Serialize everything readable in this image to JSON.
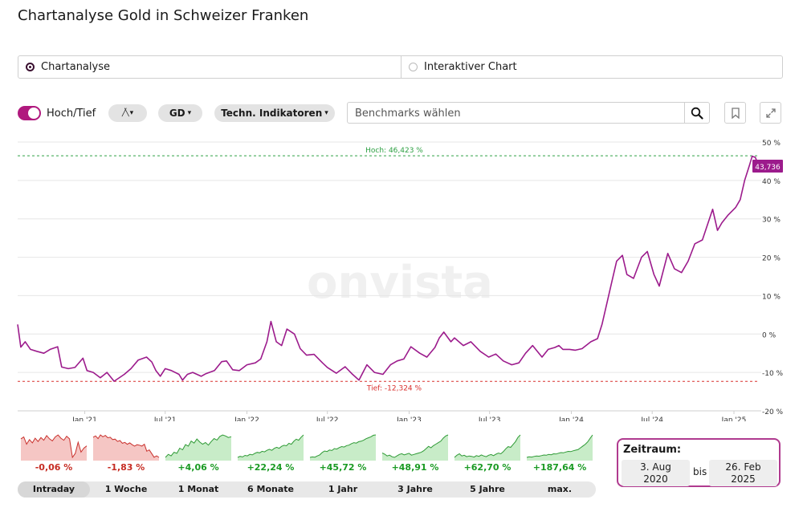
{
  "page": {
    "title": "Chartanalyse Gold in Schweizer Franken"
  },
  "modes": [
    {
      "label": "Chartanalyse",
      "selected": true
    },
    {
      "label": "Interaktiver Chart",
      "selected": false
    }
  ],
  "toolbar": {
    "toggle_label": "Hoch/Tief",
    "chart_type_label": "╱╲",
    "ma_label": "GD",
    "indicators_label": "Techn. Indikatoren",
    "search_placeholder": "Benchmarks wählen",
    "icons": [
      "chevron-down-icon",
      "search-icon",
      "bookmark-icon",
      "expand-icon"
    ]
  },
  "colors": {
    "line": "#9c1b8c",
    "high": "#2ea043",
    "low": "#d9302e",
    "accent": "#b0197e",
    "neg_bg": "#f5c6c4",
    "neg_line": "#c9302c",
    "pos_bg": "#c8ecc8",
    "pos_line": "#2e9a35"
  },
  "chart_data": {
    "type": "line",
    "title": "",
    "ylim": [
      -20,
      50
    ],
    "y_ticks": [
      50,
      40,
      30,
      20,
      10,
      0,
      -10,
      -20
    ],
    "y_tick_labels": [
      "50 %",
      "40 %",
      "30 %",
      "20 %",
      "10 %",
      "0 %",
      "-10 %",
      "-20 %"
    ],
    "x_ticks": [
      "Jan '21",
      "Jul '21",
      "Jan '22",
      "Jul '22",
      "Jan '23",
      "Jul '23",
      "Jan '24",
      "Jul '24",
      "Jan '25"
    ],
    "x_tick_dates": [
      "2021-01-01",
      "2021-07-01",
      "2022-01-01",
      "2022-07-01",
      "2023-01-01",
      "2023-07-01",
      "2024-01-01",
      "2024-07-01",
      "2025-01-01"
    ],
    "x_range": [
      "2020-08-03",
      "2025-02-26"
    ],
    "grid": true,
    "high_label": "Hoch: 46,423 %",
    "high_value": 46.423,
    "low_label": "Tief: -12,324 %",
    "low_value": -12.324,
    "last_label": "43,736",
    "last_value": 43.736,
    "watermark": "onvista",
    "series": [
      {
        "x": [
          "2020-08-03",
          "2020-08-10",
          "2020-08-20",
          "2020-09-01",
          "2020-09-15",
          "2020-10-01",
          "2020-10-15",
          "2020-11-01",
          "2020-11-10",
          "2020-11-25",
          "2020-12-10",
          "2020-12-28",
          "2021-01-06",
          "2021-01-20",
          "2021-02-05",
          "2021-02-20",
          "2021-03-08",
          "2021-03-31",
          "2021-04-15",
          "2021-05-01",
          "2021-05-20",
          "2021-06-01",
          "2021-06-10",
          "2021-06-20",
          "2021-07-01",
          "2021-07-15",
          "2021-08-01",
          "2021-08-09",
          "2021-08-20",
          "2021-09-01",
          "2021-09-20",
          "2021-10-01",
          "2021-10-20",
          "2021-11-05",
          "2021-11-16",
          "2021-11-30",
          "2021-12-15",
          "2022-01-01",
          "2022-01-20",
          "2022-02-01",
          "2022-02-15",
          "2022-02-24",
          "2022-03-08",
          "2022-03-20",
          "2022-04-01",
          "2022-04-18",
          "2022-05-01",
          "2022-05-15",
          "2022-06-01",
          "2022-06-20",
          "2022-07-01",
          "2022-07-21",
          "2022-08-10",
          "2022-08-25",
          "2022-09-10",
          "2022-09-28",
          "2022-10-15",
          "2022-11-03",
          "2022-11-20",
          "2022-12-05",
          "2022-12-20",
          "2023-01-05",
          "2023-01-25",
          "2023-02-10",
          "2023-02-28",
          "2023-03-10",
          "2023-03-20",
          "2023-04-05",
          "2023-04-13",
          "2023-05-03",
          "2023-05-20",
          "2023-06-10",
          "2023-06-29",
          "2023-07-15",
          "2023-08-01",
          "2023-08-20",
          "2023-09-05",
          "2023-09-20",
          "2023-10-06",
          "2023-10-20",
          "2023-10-27",
          "2023-11-10",
          "2023-11-25",
          "2023-12-04",
          "2023-12-13",
          "2023-12-28",
          "2024-01-10",
          "2024-01-25",
          "2024-02-14",
          "2024-02-29",
          "2024-03-10",
          "2024-03-20",
          "2024-04-01",
          "2024-04-12",
          "2024-04-25",
          "2024-05-05",
          "2024-05-20",
          "2024-06-07",
          "2024-06-20",
          "2024-07-05",
          "2024-07-17",
          "2024-08-05",
          "2024-08-20",
          "2024-09-05",
          "2024-09-20",
          "2024-10-05",
          "2024-10-22",
          "2024-11-01",
          "2024-11-14",
          "2024-11-25",
          "2024-12-05",
          "2024-12-19",
          "2025-01-05",
          "2025-01-15",
          "2025-01-25",
          "2025-02-05",
          "2025-02-11",
          "2025-02-18",
          "2025-02-26"
        ],
        "values": [
          2.5,
          -3.4,
          -2.0,
          -4.0,
          -4.5,
          -5.0,
          -4.0,
          -3.3,
          -8.6,
          -9.0,
          -8.7,
          -6.3,
          -9.5,
          -10.0,
          -11.4,
          -10.0,
          -12.3,
          -10.5,
          -9.0,
          -6.8,
          -6.0,
          -7.3,
          -9.5,
          -11.0,
          -9.0,
          -9.5,
          -10.5,
          -12.0,
          -10.5,
          -10.0,
          -11.0,
          -10.3,
          -9.5,
          -7.2,
          -7.0,
          -9.3,
          -9.5,
          -8.0,
          -7.5,
          -6.5,
          -2.0,
          3.3,
          -2.0,
          -3.0,
          1.3,
          0.0,
          -3.8,
          -5.5,
          -5.3,
          -7.5,
          -8.7,
          -10.2,
          -8.5,
          -10.3,
          -12.0,
          -8.0,
          -10.0,
          -10.5,
          -8.0,
          -7.0,
          -6.5,
          -3.3,
          -5.0,
          -6.0,
          -3.5,
          -1.0,
          0.5,
          -2.0,
          -1.0,
          -3.0,
          -2.0,
          -4.5,
          -6.0,
          -5.2,
          -7.0,
          -8.0,
          -7.5,
          -5.0,
          -3.0,
          -5.0,
          -6.0,
          -4.0,
          -3.5,
          -3.0,
          -4.0,
          -4.0,
          -4.2,
          -3.8,
          -2.0,
          -1.2,
          2.5,
          7.5,
          13.5,
          19.0,
          20.5,
          15.5,
          14.5,
          20.0,
          21.5,
          15.5,
          12.5,
          21.0,
          17.0,
          16.0,
          19.0,
          23.5,
          24.5,
          28.0,
          32.5,
          27.0,
          29.0,
          31.0,
          33.0,
          35.0,
          40.0,
          44.0,
          46.3,
          46.0,
          43.7
        ]
      }
    ]
  },
  "periods": [
    {
      "label": "Intraday",
      "change": "-0,06 %",
      "active": true,
      "spark": [
        1.0,
        1.3,
        0.2,
        0.9,
        0.4,
        1.1,
        0.6,
        1.2,
        0.8,
        1.5,
        1.0,
        0.7,
        1.3,
        1.6,
        1.1,
        0.8,
        1.4,
        1.0,
        -1.8,
        -1.2,
        0.5,
        -1.0,
        -0.4,
        -0.06
      ]
    },
    {
      "label": "1 Woche",
      "change": "-1,83 %",
      "active": false,
      "spark": [
        2.5,
        2.8,
        2.2,
        3.0,
        2.6,
        2.9,
        2.4,
        2.5,
        2.0,
        2.1,
        1.6,
        1.8,
        1.2,
        1.4,
        1.0,
        1.3,
        0.9,
        0.6,
        0.9,
        0.8,
        0.6,
        1.0,
        -0.5,
        -0.2,
        -1.0,
        -1.8,
        -1.5,
        -1.83
      ]
    },
    {
      "label": "1 Monat",
      "change": "+4,06 %",
      "active": false,
      "spark": [
        0.0,
        0.6,
        0.3,
        1.0,
        0.8,
        1.8,
        1.5,
        2.5,
        2.2,
        3.2,
        2.8,
        3.6,
        3.0,
        2.6,
        2.9,
        2.4,
        3.1,
        3.7,
        3.4,
        4.1,
        4.4,
        4.2,
        3.9,
        4.06
      ]
    },
    {
      "label": "6 Monate",
      "change": "+22,24 %",
      "active": false,
      "spark": [
        0,
        1,
        0.5,
        2,
        1.5,
        3,
        2.5,
        4,
        5,
        4.5,
        6,
        5.5,
        7,
        8,
        7,
        9,
        10,
        9,
        11,
        12,
        11.5,
        14,
        13,
        16,
        18,
        17,
        20,
        22.24
      ]
    },
    {
      "label": "1 Jahr",
      "change": "+45,72 %",
      "active": false,
      "spark": [
        0,
        1,
        0.5,
        3,
        5,
        10,
        13,
        12,
        15,
        14,
        18,
        17,
        20,
        22,
        21,
        24,
        25,
        28,
        30,
        29,
        32,
        33,
        35,
        38,
        40,
        42,
        45,
        45.72
      ]
    },
    {
      "label": "3 Jahre",
      "change": "+48,91 %",
      "active": false,
      "spark": [
        0,
        -3,
        -8,
        -6,
        -10,
        -12,
        -8,
        -4,
        -2,
        -5,
        -3,
        -1,
        -6,
        -4,
        -2,
        0,
        2,
        6,
        12,
        18,
        14,
        20,
        24,
        28,
        32,
        40,
        46,
        48.91
      ]
    },
    {
      "label": "5 Jahre",
      "change": "+62,70 %",
      "active": false,
      "spark": [
        0,
        6,
        10,
        4,
        6,
        2,
        4,
        3,
        1,
        5,
        3,
        7,
        4,
        2,
        6,
        8,
        5,
        9,
        12,
        10,
        16,
        24,
        30,
        28,
        36,
        44,
        56,
        62.7
      ]
    },
    {
      "label": "max.",
      "change": "+187,64 %",
      "active": false,
      "spark": [
        0,
        5,
        3,
        8,
        12,
        10,
        15,
        20,
        18,
        25,
        22,
        30,
        28,
        35,
        40,
        38,
        45,
        50,
        48,
        55,
        60,
        65,
        80,
        95,
        110,
        130,
        160,
        187.64
      ]
    }
  ],
  "zeitraum": {
    "title": "Zeitraum:",
    "from_line1": "3. Aug",
    "from_line2": "2020",
    "bis": "bis",
    "to_line1": "26. Feb",
    "to_line2": "2025"
  }
}
